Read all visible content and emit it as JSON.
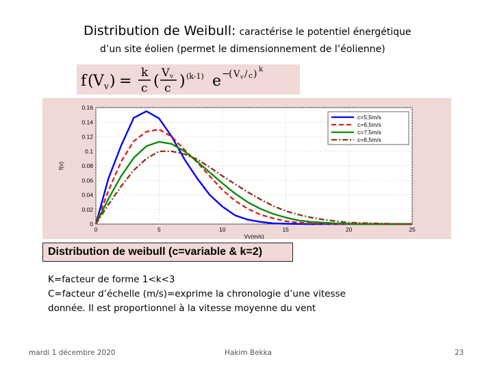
{
  "slide": {
    "title_main": "Distribution de Weibull:",
    "title_rest": "caractérise le potentiel énergétique",
    "subtitle": "d’un site éolien (permet le dimensionnement de l’éolienne)",
    "chart_caption": "Distribution de weibull (c=variable & k=2)",
    "body_lines": [
      "K=facteur de forme  1<k<3",
      "C=facteur  d’échelle  (m/s)=exprime  la  chronologie  d’une  vitesse",
      "donnée. Il est proportionnel à la vitesse moyenne du vent"
    ],
    "footer_date": "mardi 1 décembre 2020",
    "footer_author": "Hakim Bekka",
    "footer_page": "23"
  },
  "formula": {
    "f": "f",
    "arg": "V",
    "arg_sub": "v",
    "eq": "=",
    "k": "k",
    "c": "c",
    "exp_base": "e",
    "power": "(k-1)",
    "outer_exp": "k"
  },
  "colors": {
    "panel_bg": "#efd9d7",
    "series": [
      "#0000ff",
      "#e02020",
      "#0a8a0a",
      "#8b3a1e"
    ]
  },
  "chart_data": {
    "type": "line",
    "xlabel": "Vv(m/s)",
    "ylabel": "f(v)",
    "xlim": [
      0,
      25
    ],
    "ylim": [
      0,
      0.16
    ],
    "xticks": [
      0,
      5,
      10,
      15,
      20,
      25
    ],
    "yticks": [
      0,
      0.02,
      0.04,
      0.06,
      0.08,
      0.1,
      0.12,
      0.14,
      0.16
    ],
    "grid": true,
    "legend_position": "top-right",
    "x": [
      0,
      1,
      2,
      3,
      4,
      5,
      6,
      7,
      8,
      9,
      10,
      11,
      12,
      13,
      14,
      15,
      16,
      17,
      18,
      19,
      20,
      21,
      22,
      23,
      24,
      25
    ],
    "series": [
      {
        "name": "c=5,5m/s",
        "color": "#0000ff",
        "dash": "solid",
        "values": [
          0,
          0.063,
          0.108,
          0.146,
          0.155,
          0.145,
          0.12,
          0.089,
          0.063,
          0.04,
          0.024,
          0.012,
          0.006,
          0.003,
          0.001,
          0.0005,
          0.0002,
          0,
          0,
          0,
          0,
          0,
          0,
          0,
          0,
          0
        ]
      },
      {
        "name": "c=6,5m/s",
        "color": "#e02020",
        "dash": "dashed",
        "values": [
          0,
          0.046,
          0.086,
          0.114,
          0.127,
          0.13,
          0.12,
          0.102,
          0.085,
          0.066,
          0.047,
          0.032,
          0.021,
          0.013,
          0.008,
          0.004,
          0.002,
          0.001,
          0.0005,
          0,
          0,
          0,
          0,
          0,
          0,
          0
        ]
      },
      {
        "name": "c=7,5m/s",
        "color": "#0a8a0a",
        "dash": "solid",
        "values": [
          0,
          0.035,
          0.066,
          0.091,
          0.107,
          0.113,
          0.11,
          0.1,
          0.086,
          0.071,
          0.056,
          0.042,
          0.03,
          0.021,
          0.014,
          0.009,
          0.005,
          0.003,
          0.002,
          0.001,
          0.0005,
          0,
          0,
          0,
          0,
          0
        ]
      },
      {
        "name": "c=8,5m/s",
        "color": "#8b3a1e",
        "dash": "dashdot",
        "values": [
          0,
          0.027,
          0.052,
          0.074,
          0.09,
          0.1,
          0.1,
          0.096,
          0.089,
          0.078,
          0.066,
          0.055,
          0.044,
          0.034,
          0.025,
          0.018,
          0.013,
          0.009,
          0.006,
          0.004,
          0.002,
          0.0015,
          0.001,
          0.0005,
          0,
          0
        ]
      }
    ]
  }
}
